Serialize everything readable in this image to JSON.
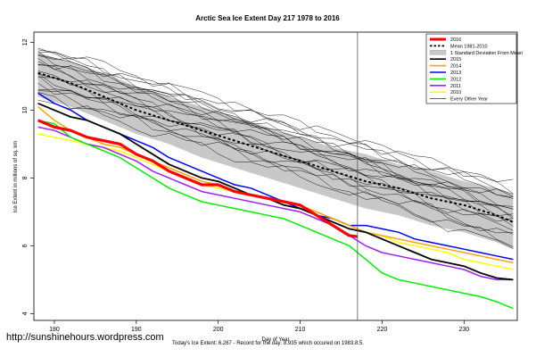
{
  "chart_data": {
    "type": "line",
    "title": "Arctic Sea Ice Extent Day 217 1978 to 2016",
    "xlabel": "Day of Year",
    "ylabel": "Ice Extent in millions of sq. km",
    "xlim": [
      177.5,
      236.5
    ],
    "ylim": [
      3.8,
      12.3
    ],
    "xticks": [
      180,
      190,
      200,
      210,
      220,
      230
    ],
    "yticks": [
      4,
      6,
      8,
      10,
      12
    ],
    "vline_x": 217,
    "legend_position": "top-right",
    "legend": [
      {
        "label": "2016",
        "color": "#ff0000",
        "style": "thick"
      },
      {
        "label": "Mean 1981-2010",
        "color": "#000000",
        "style": "dotted"
      },
      {
        "label": "1 Standard Deviation From Mean",
        "color": "#c0c0c0",
        "style": "band"
      },
      {
        "label": "2015",
        "color": "#000000",
        "style": "line"
      },
      {
        "label": "2014",
        "color": "#ffa500",
        "style": "line"
      },
      {
        "label": "2013",
        "color": "#0000ff",
        "style": "line"
      },
      {
        "label": "2012",
        "color": "#00ee00",
        "style": "line"
      },
      {
        "label": "2011",
        "color": "#a020f0",
        "style": "line"
      },
      {
        "label": "2010",
        "color": "#ffff00",
        "style": "line"
      },
      {
        "label": "Every Other Year",
        "color": "#000000",
        "style": "thin"
      }
    ],
    "mean": {
      "x": [
        178,
        182,
        186,
        190,
        194,
        198,
        202,
        206,
        210,
        214,
        218,
        222,
        226,
        230,
        234,
        236
      ],
      "y": [
        11.1,
        10.8,
        10.4,
        10.0,
        9.7,
        9.4,
        9.1,
        8.8,
        8.5,
        8.2,
        7.9,
        7.7,
        7.4,
        7.2,
        6.9,
        6.7
      ]
    },
    "std_band": {
      "x": [
        178,
        182,
        186,
        190,
        194,
        198,
        202,
        206,
        210,
        214,
        218,
        222,
        226,
        230,
        234,
        236
      ],
      "lower": [
        10.4,
        10.1,
        9.7,
        9.3,
        9.0,
        8.6,
        8.3,
        8.0,
        7.7,
        7.4,
        7.1,
        6.9,
        6.6,
        6.4,
        6.1,
        5.9
      ],
      "upper": [
        11.7,
        11.4,
        11.1,
        10.7,
        10.4,
        10.1,
        9.8,
        9.5,
        9.2,
        8.9,
        8.7,
        8.4,
        8.2,
        7.9,
        7.7,
        7.5
      ]
    },
    "series": [
      {
        "name": "2016",
        "color": "#ff0000",
        "width": 3.2,
        "x": [
          178,
          180,
          182,
          184,
          186,
          188,
          190,
          192,
          194,
          196,
          198,
          200,
          202,
          204,
          206,
          208,
          210,
          212,
          214,
          216,
          217
        ],
        "y": [
          9.7,
          9.5,
          9.4,
          9.2,
          9.1,
          9.0,
          8.7,
          8.5,
          8.2,
          8.0,
          7.8,
          7.8,
          7.6,
          7.5,
          7.4,
          7.3,
          7.2,
          6.9,
          6.6,
          6.3,
          6.27
        ]
      },
      {
        "name": "2015",
        "color": "#000000",
        "width": 1.8,
        "x": [
          178,
          180,
          182,
          184,
          186,
          188,
          190,
          192,
          194,
          196,
          198,
          200,
          202,
          204,
          206,
          208,
          210,
          212,
          214,
          216,
          218,
          220,
          222,
          224,
          226,
          228,
          230,
          232,
          234,
          236
        ],
        "y": [
          10.2,
          10.0,
          9.8,
          9.7,
          9.5,
          9.3,
          9.0,
          8.7,
          8.4,
          8.2,
          8.0,
          7.9,
          7.7,
          7.5,
          7.4,
          7.2,
          7.1,
          6.9,
          6.7,
          6.5,
          6.4,
          6.2,
          6.0,
          5.8,
          5.6,
          5.5,
          5.4,
          5.2,
          5.05,
          5.0
        ]
      },
      {
        "name": "2014",
        "color": "#ffa500",
        "width": 1.5,
        "x": [
          178,
          180,
          182,
          184,
          186,
          188,
          190,
          192,
          194,
          196,
          198,
          200,
          202,
          204,
          206,
          208,
          210,
          212,
          214,
          216,
          218,
          220,
          222,
          224,
          226,
          228,
          230,
          232,
          234,
          236
        ],
        "y": [
          10.1,
          9.7,
          9.4,
          9.2,
          9.0,
          8.9,
          8.7,
          8.5,
          8.3,
          8.1,
          7.9,
          7.8,
          7.6,
          7.5,
          7.4,
          7.3,
          7.2,
          7.0,
          6.8,
          6.6,
          6.4,
          6.3,
          6.2,
          6.1,
          6.0,
          5.9,
          5.8,
          5.7,
          5.6,
          5.5
        ]
      },
      {
        "name": "2013",
        "color": "#0000ff",
        "width": 1.5,
        "x": [
          178,
          180,
          182,
          184,
          186,
          188,
          190,
          192,
          194,
          196,
          198,
          200,
          202,
          204,
          206,
          208,
          210,
          212,
          214,
          216,
          218,
          220,
          222,
          224,
          226,
          228,
          230,
          232,
          234,
          236
        ],
        "y": [
          10.5,
          10.2,
          10.0,
          9.7,
          9.5,
          9.3,
          9.1,
          8.9,
          8.6,
          8.4,
          8.2,
          8.0,
          7.8,
          7.7,
          7.5,
          7.3,
          7.1,
          6.9,
          6.8,
          6.6,
          6.6,
          6.5,
          6.4,
          6.2,
          6.1,
          6.0,
          5.9,
          5.8,
          5.7,
          5.6
        ]
      },
      {
        "name": "2012",
        "color": "#00ee00",
        "width": 1.5,
        "x": [
          178,
          180,
          182,
          184,
          186,
          188,
          190,
          192,
          194,
          196,
          198,
          200,
          202,
          204,
          206,
          208,
          210,
          212,
          214,
          216,
          218,
          220,
          222,
          224,
          226,
          228,
          230,
          232,
          234,
          236
        ],
        "y": [
          9.7,
          9.6,
          9.2,
          9.0,
          8.8,
          8.6,
          8.3,
          8.0,
          7.7,
          7.5,
          7.3,
          7.2,
          7.1,
          7.0,
          6.9,
          6.8,
          6.6,
          6.4,
          6.2,
          6.0,
          5.6,
          5.2,
          5.0,
          4.9,
          4.8,
          4.7,
          4.6,
          4.5,
          4.35,
          4.15
        ]
      },
      {
        "name": "2011",
        "color": "#a020f0",
        "width": 1.5,
        "x": [
          178,
          180,
          182,
          184,
          186,
          188,
          190,
          192,
          194,
          196,
          198,
          200,
          202,
          204,
          206,
          208,
          210,
          212,
          214,
          216,
          218,
          220,
          222,
          224,
          226,
          228,
          230,
          232,
          234,
          236
        ],
        "y": [
          9.5,
          9.4,
          9.2,
          9.0,
          8.9,
          8.7,
          8.5,
          8.2,
          8.0,
          7.8,
          7.6,
          7.5,
          7.4,
          7.3,
          7.2,
          7.1,
          7.0,
          6.8,
          6.6,
          6.3,
          6.0,
          5.8,
          5.7,
          5.6,
          5.5,
          5.4,
          5.3,
          5.1,
          5.0,
          5.0
        ]
      },
      {
        "name": "2010",
        "color": "#ffff00",
        "width": 1.5,
        "x": [
          178,
          180,
          182,
          184,
          186,
          188,
          190,
          192,
          194,
          196,
          198,
          200,
          202,
          204,
          206,
          208,
          210,
          212,
          214,
          216,
          218,
          220,
          222,
          224,
          226,
          228,
          230,
          232,
          234,
          236
        ],
        "y": [
          9.3,
          9.2,
          9.1,
          9.0,
          8.9,
          8.8,
          8.6,
          8.4,
          8.2,
          8.0,
          7.8,
          7.7,
          7.6,
          7.5,
          7.4,
          7.3,
          7.2,
          7.0,
          6.8,
          6.6,
          6.4,
          6.3,
          6.1,
          6.0,
          5.9,
          5.8,
          5.6,
          5.5,
          5.4,
          5.3
        ]
      }
    ],
    "thin_series": [
      {
        "start": 11.9,
        "end": 7.7
      },
      {
        "start": 11.8,
        "end": 7.5
      },
      {
        "start": 11.7,
        "end": 7.8
      },
      {
        "start": 11.6,
        "end": 7.3
      },
      {
        "start": 11.5,
        "end": 7.6
      },
      {
        "start": 11.4,
        "end": 7.1
      },
      {
        "start": 11.3,
        "end": 7.4
      },
      {
        "start": 11.2,
        "end": 6.9
      },
      {
        "start": 11.1,
        "end": 7.2
      },
      {
        "start": 11.0,
        "end": 6.7
      },
      {
        "start": 10.9,
        "end": 7.0
      },
      {
        "start": 10.8,
        "end": 6.5
      },
      {
        "start": 10.7,
        "end": 6.8
      },
      {
        "start": 10.6,
        "end": 6.3
      },
      {
        "start": 10.5,
        "end": 6.6
      },
      {
        "start": 10.4,
        "end": 6.1
      },
      {
        "start": 11.65,
        "end": 6.9
      },
      {
        "start": 11.35,
        "end": 6.2
      },
      {
        "start": 10.95,
        "end": 5.9
      },
      {
        "start": 11.75,
        "end": 7.0
      }
    ]
  },
  "credit": "http://sunshinehours.wordpress.com",
  "footnote": "Today's Ice Extent: 6.267  -  Record for the day: 8.935 which occured on 1983.8.5."
}
